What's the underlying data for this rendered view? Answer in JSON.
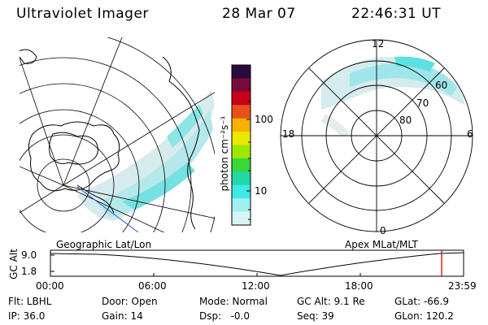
{
  "header": {
    "title": "Ultraviolet Imager",
    "date": "28 Mar 07",
    "time": "22:46:31 UT"
  },
  "left_map": {
    "caption": "Geographic Lat/Lon"
  },
  "right_map": {
    "caption": "Apex MLat/MLT",
    "mlt_labels": {
      "top": "12",
      "left": "18",
      "right": "6",
      "bottom": "0"
    },
    "lat_labels": [
      "60",
      "70",
      "80"
    ]
  },
  "colorbar": {
    "unit_label": "photon cm⁻²s⁻¹",
    "ticks": [
      "100",
      "10"
    ],
    "colors": [
      "#2a0a3c",
      "#7a0a3a",
      "#c8001a",
      "#e8501a",
      "#f5b000",
      "#e8e800",
      "#9ee800",
      "#38d838",
      "#20d8a8",
      "#40e8e8",
      "#a0f0f0",
      "#d8f4f4"
    ]
  },
  "altitude_plot": {
    "ylabel": "GC Alt",
    "yticks": [
      "9.0",
      "1.8"
    ],
    "xticks": [
      "00:00",
      "06:00",
      "12:00",
      "18:00",
      "23:59"
    ]
  },
  "status": {
    "flt": "Flt: LBHL",
    "ip": "IP: 36.0",
    "door": "Door: Open",
    "gain": "Gain: 14",
    "mode": "Mode: Normal",
    "dsp": "Dsp:   -0.0",
    "gcalt": "GC Alt: 9.1 Re",
    "seq": "Seq: 39",
    "glat": "GLat: -66.9",
    "glon": "GLon: 120.2"
  }
}
